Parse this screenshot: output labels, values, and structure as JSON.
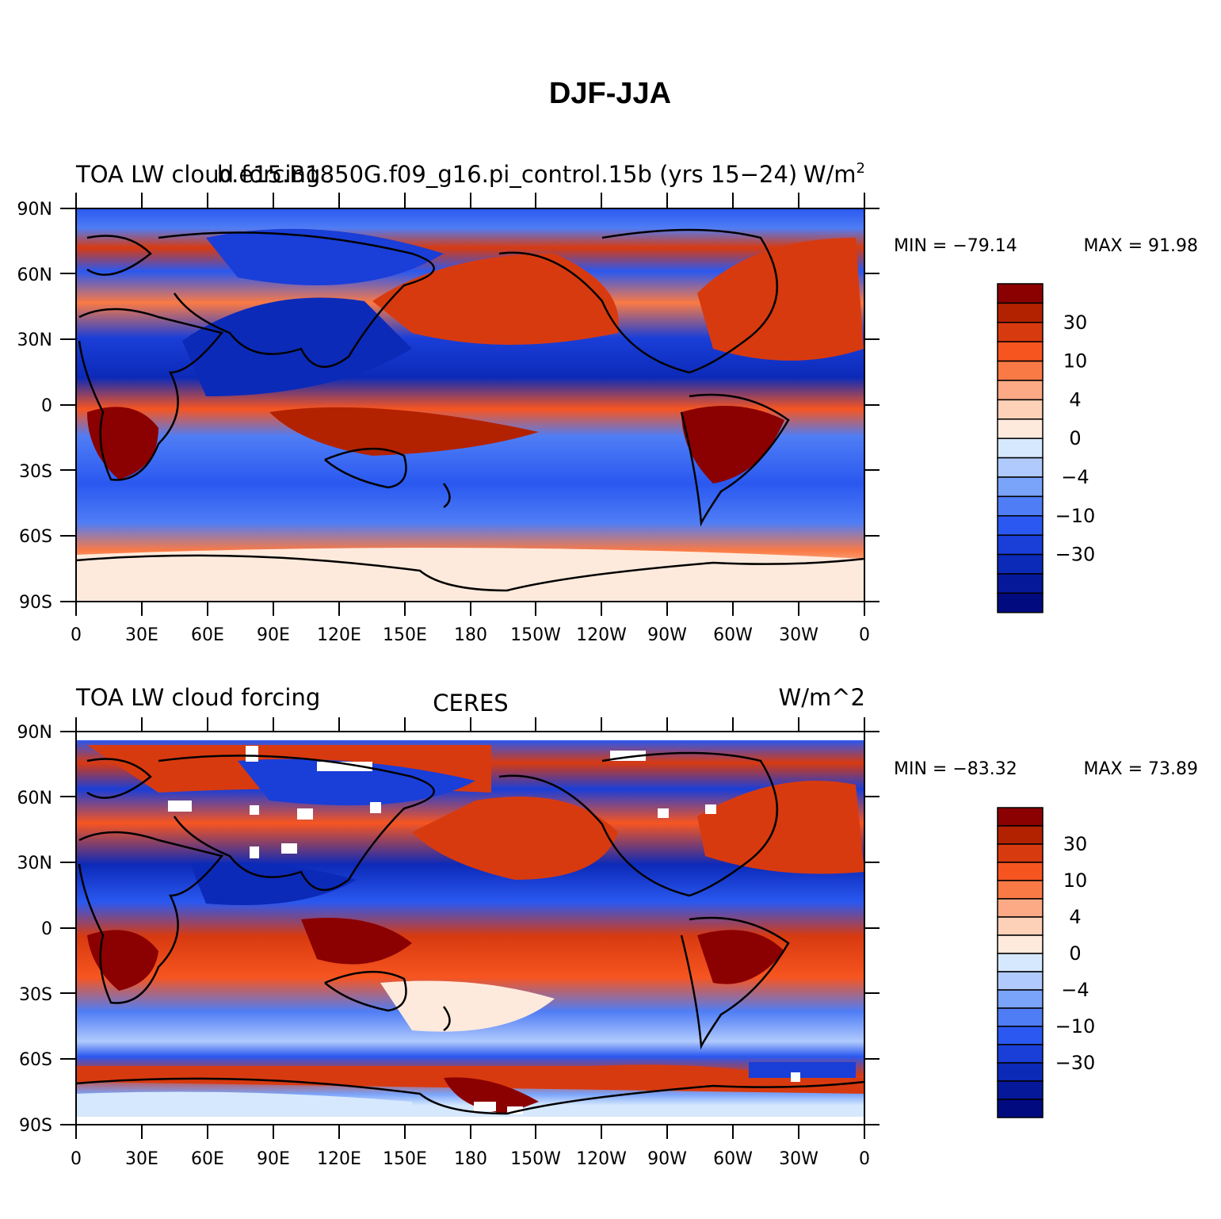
{
  "figure": {
    "title": "DJF-JJA",
    "lat_labels": [
      "90N",
      "60N",
      "30N",
      "0",
      "30S",
      "60S",
      "90S"
    ],
    "lon_labels": [
      "0",
      "30E",
      "60E",
      "90E",
      "120E",
      "150E",
      "180",
      "150W",
      "120W",
      "90W",
      "60W",
      "30W",
      "0"
    ],
    "colorbar": {
      "tick_labels": [
        "30",
        "10",
        "4",
        "0",
        "−4",
        "−10",
        "−30"
      ],
      "colors": [
        "#8b0000",
        "#b22200",
        "#d83a10",
        "#f75520",
        "#fa7a45",
        "#fcaa85",
        "#fdd0b8",
        "#feeadc",
        "#d5e8fd",
        "#b0cafd",
        "#7aa3fa",
        "#4f7df5",
        "#2a58f0",
        "#1a3ed8",
        "#0c2ab8",
        "#06189a",
        "#020a80"
      ]
    }
  },
  "panels": [
    {
      "left_title": "TOA LW cloud forcing",
      "center_title": "b.e15.B1850G.f09_g16.pi_control.15b (yrs 15−24)",
      "units": "W/m",
      "units_sup": "2",
      "min_label": "MIN = −79.14",
      "max_label": "MAX =   91.98"
    },
    {
      "left_title": "TOA LW cloud forcing",
      "center_title": "CERES",
      "units": "W/m^2",
      "min_label": "MIN = −83.32",
      "max_label": "MAX =   73.89"
    }
  ],
  "chart_data": [
    {
      "type": "heatmap",
      "title": "TOA LW cloud forcing",
      "subtitle": "b.e15.B1850G.f09_g16.pi_control.15b (yrs 15−24)",
      "units": "W/m^2",
      "x_range": [
        0,
        360
      ],
      "y_range": [
        -90,
        90
      ],
      "min": -79.14,
      "max": 91.98,
      "colorbar_ticks": [
        30,
        10,
        4,
        0,
        -4,
        -10,
        -30
      ]
    },
    {
      "type": "heatmap",
      "title": "TOA LW cloud forcing",
      "subtitle": "CERES",
      "units": "W/m^2",
      "x_range": [
        0,
        360
      ],
      "y_range": [
        -90,
        90
      ],
      "min": -83.32,
      "max": 73.89,
      "colorbar_ticks": [
        30,
        10,
        4,
        0,
        -4,
        -10,
        -30
      ]
    }
  ]
}
